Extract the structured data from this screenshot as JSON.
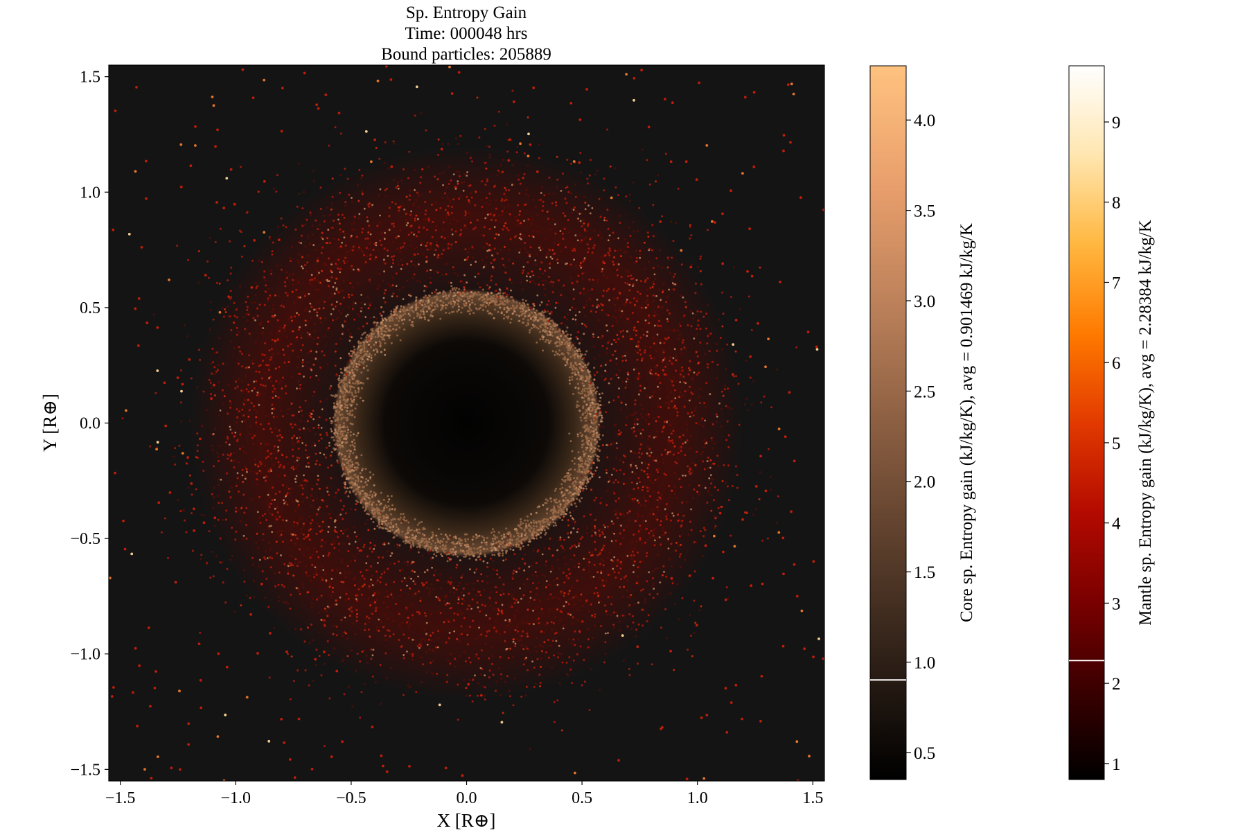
{
  "chart_data": {
    "type": "scatter",
    "title_lines": [
      "Sp. Entropy Gain",
      "Time: 000048 hrs",
      "Bound particles: 205889"
    ],
    "xlabel": "X [R⊕]",
    "ylabel": "Y [R⊕]",
    "xlim": [
      -1.55,
      1.55
    ],
    "ylim": [
      -1.55,
      1.55
    ],
    "xticks": [
      {
        "value": -1.5,
        "label": "−1.5"
      },
      {
        "value": -1.0,
        "label": "−1.0"
      },
      {
        "value": -0.5,
        "label": "−0.5"
      },
      {
        "value": 0.0,
        "label": "0.0"
      },
      {
        "value": 0.5,
        "label": "0.5"
      },
      {
        "value": 1.0,
        "label": "1.0"
      },
      {
        "value": 1.5,
        "label": "1.5"
      }
    ],
    "yticks": [
      {
        "value": -1.5,
        "label": "−1.5"
      },
      {
        "value": -1.0,
        "label": "−1.0"
      },
      {
        "value": -0.5,
        "label": "−0.5"
      },
      {
        "value": 0.0,
        "label": "0.0"
      },
      {
        "value": 0.5,
        "label": "0.5"
      },
      {
        "value": 1.0,
        "label": "1.0"
      },
      {
        "value": 1.5,
        "label": "1.5"
      }
    ],
    "plot_background": "#141414",
    "grid": false,
    "core": {
      "inner_radius": 0.47,
      "outer_radius": 0.58,
      "color": "#9c6c48"
    },
    "mantle": {
      "peak_radius": 0.9,
      "width": 0.2,
      "color": "#b01a0a"
    },
    "colorbars": [
      {
        "id": "core",
        "label": "Core sp. Entropy gain (kJ/kg/K), avg = 0.901469 kJ/kg/K",
        "range": [
          0.35,
          4.3
        ],
        "avg": 0.901469,
        "ticks": [
          {
            "value": 0.5,
            "label": "0.5"
          },
          {
            "value": 1.0,
            "label": "1.0"
          },
          {
            "value": 1.5,
            "label": "1.5"
          },
          {
            "value": 2.0,
            "label": "2.0"
          },
          {
            "value": 2.5,
            "label": "2.5"
          },
          {
            "value": 3.0,
            "label": "3.0"
          },
          {
            "value": 3.5,
            "label": "3.5"
          },
          {
            "value": 4.0,
            "label": "4.0"
          }
        ],
        "colormap": [
          "#000000",
          "#2e2017",
          "#5c3f2c",
          "#8c5f42",
          "#bc815a",
          "#e99f6c",
          "#ffc27f"
        ]
      },
      {
        "id": "mantle",
        "label": "Mantle sp. Entropy gain (kJ/kg/K), avg = 2.28384 kJ/kg/K",
        "range": [
          0.8,
          9.7
        ],
        "avg": 2.28384,
        "ticks": [
          {
            "value": 1,
            "label": "1"
          },
          {
            "value": 2,
            "label": "2"
          },
          {
            "value": 3,
            "label": "3"
          },
          {
            "value": 4,
            "label": "4"
          },
          {
            "value": 5,
            "label": "5"
          },
          {
            "value": 6,
            "label": "6"
          },
          {
            "value": 7,
            "label": "7"
          },
          {
            "value": 8,
            "label": "8"
          },
          {
            "value": 9,
            "label": "9"
          }
        ],
        "colormap": [
          "#000000",
          "#3a0000",
          "#7a0000",
          "#b40a00",
          "#e23a00",
          "#ff7a00",
          "#ffb740",
          "#ffe6b0",
          "#ffffff"
        ]
      }
    ]
  }
}
